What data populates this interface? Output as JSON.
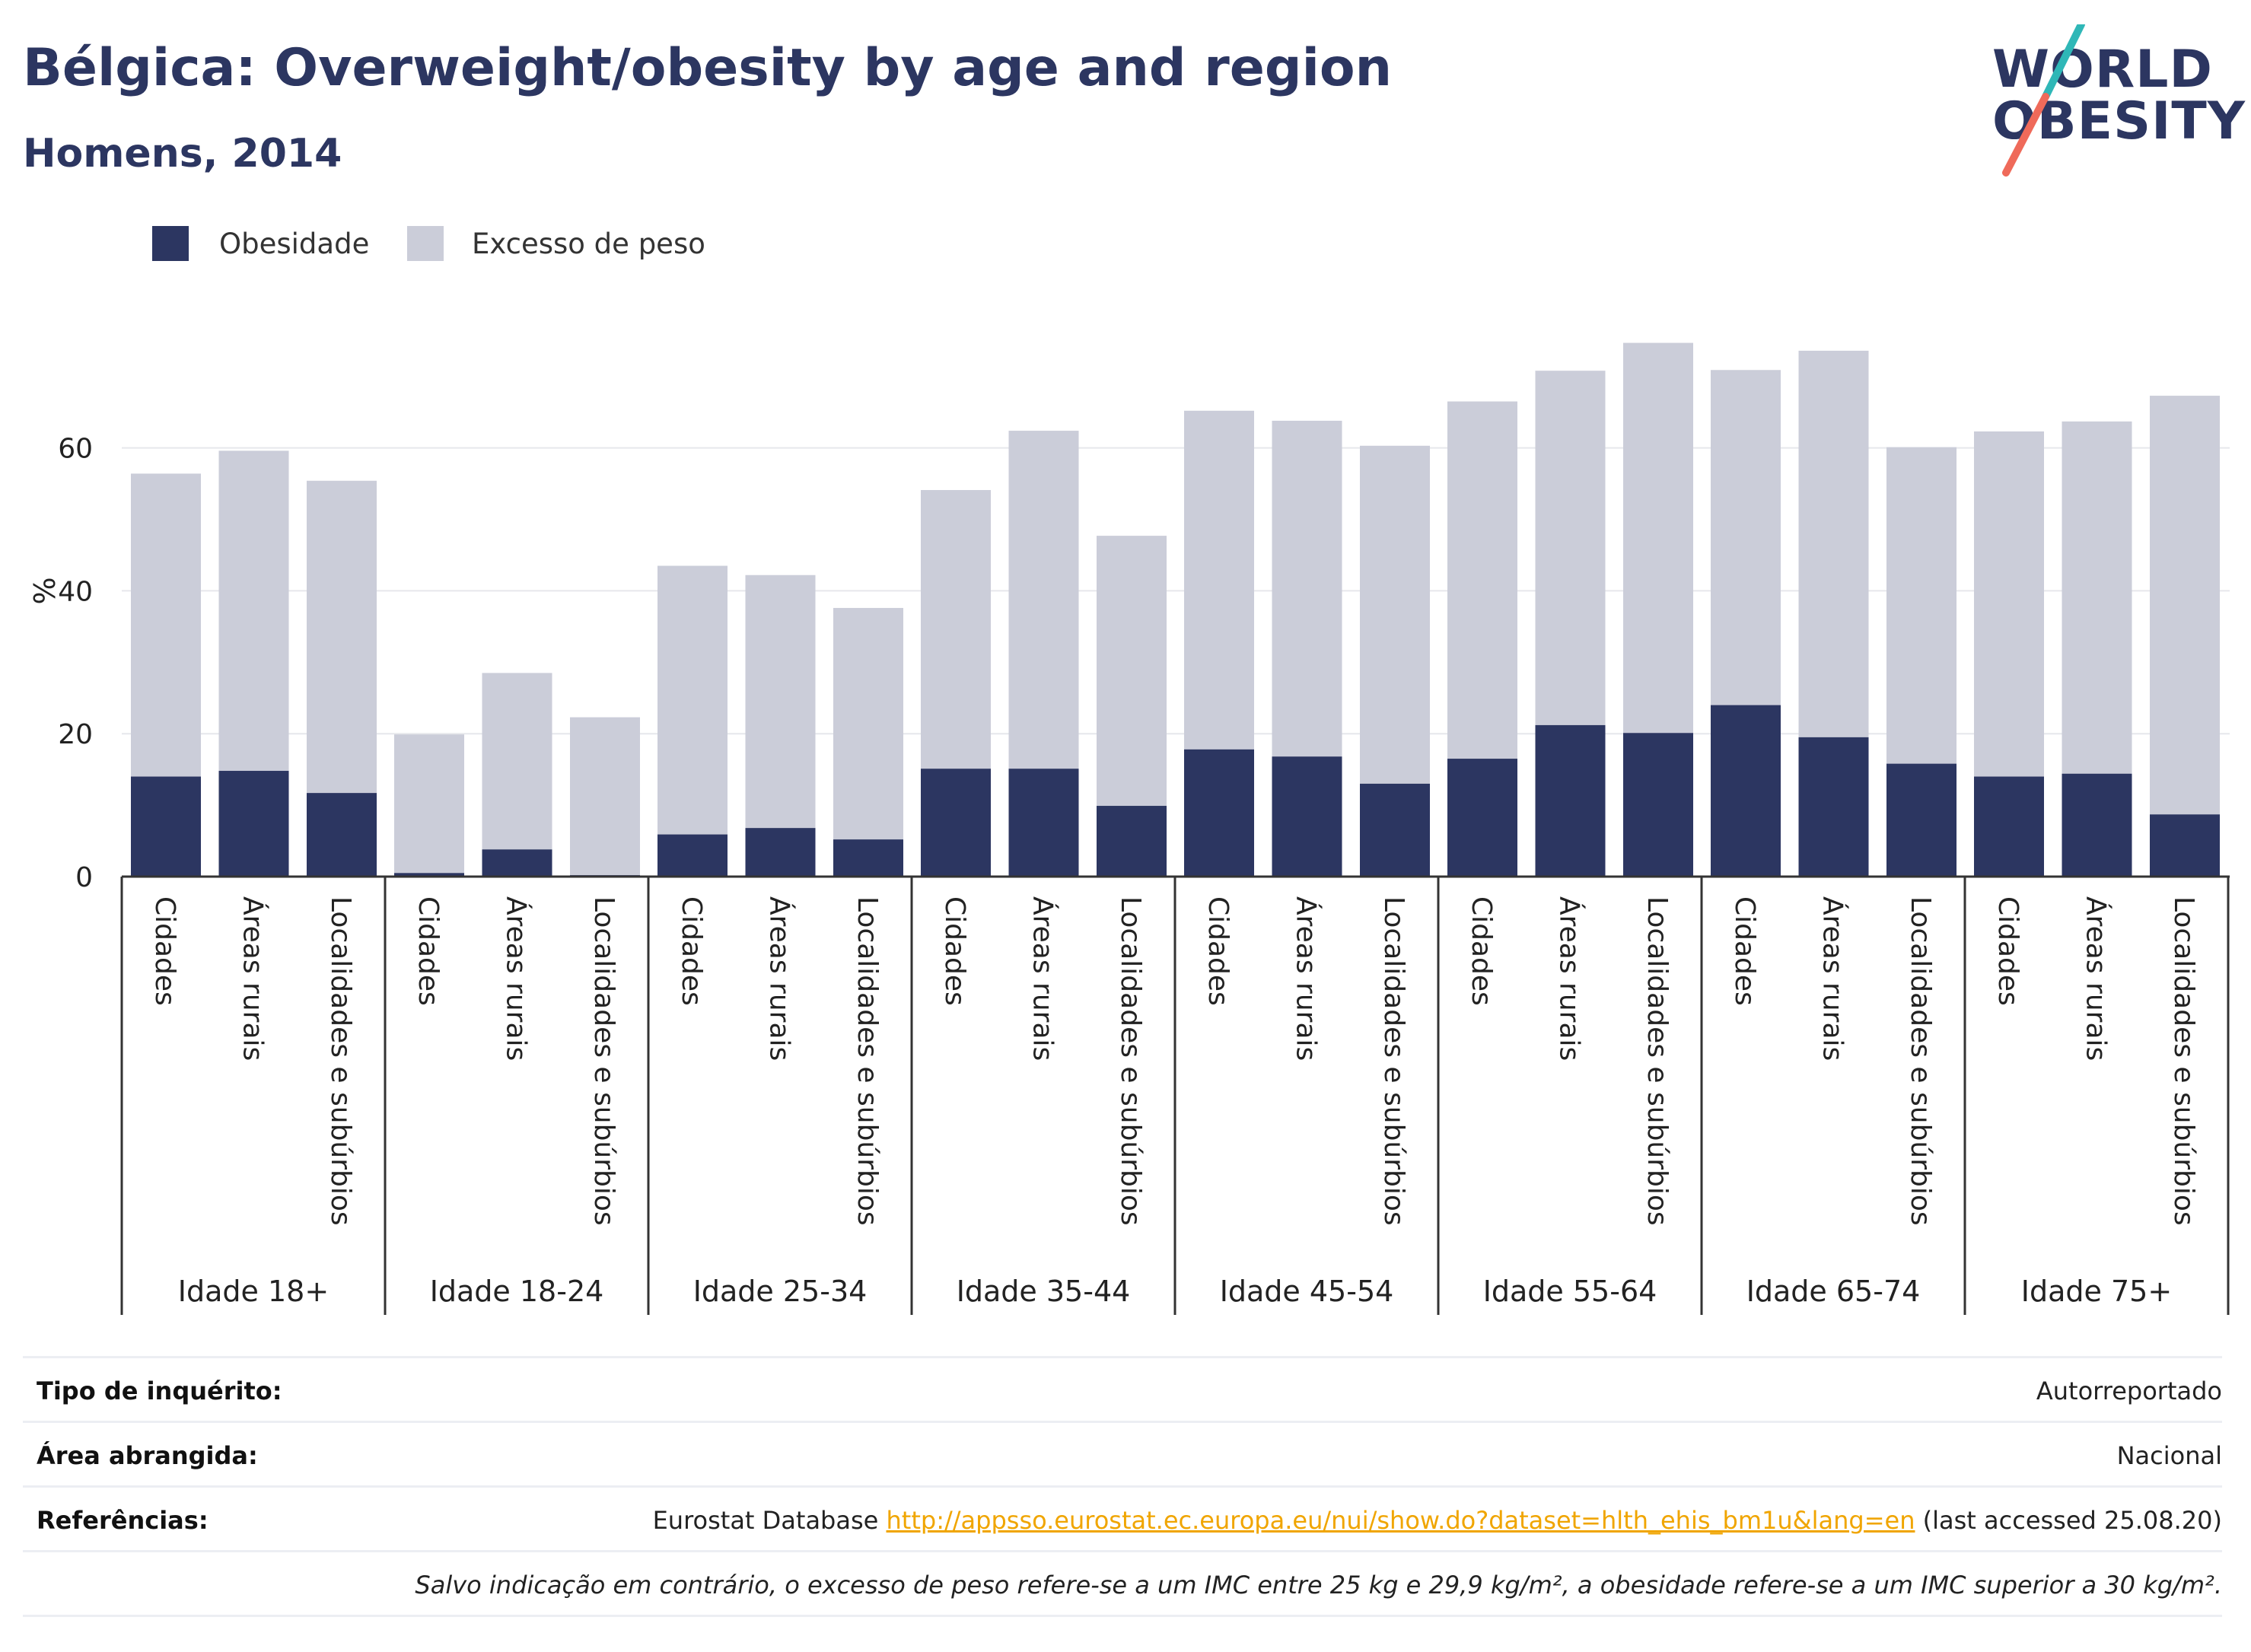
{
  "header": {
    "title": "Bélgica: Overweight/obesity by age and region",
    "subtitle": "Homens, 2014"
  },
  "logo": {
    "line1": "WORLD",
    "line2": "OBESITY"
  },
  "colors": {
    "obesity": "#2c3661",
    "overweight": "#cbcdd9",
    "accent_teal": "#2fb7b7",
    "accent_coral": "#ef6a5a",
    "link": "#f0a500"
  },
  "chart_data": {
    "type": "bar",
    "stacked": false,
    "overlay": true,
    "ylabel": "%",
    "ylim": [
      0,
      80
    ],
    "yticks": [
      0,
      20,
      40,
      60
    ],
    "grid": true,
    "legend_position": "top-left",
    "series": [
      {
        "name": "Obesidade",
        "color": "#2c3661"
      },
      {
        "name": "Excesso de peso",
        "color": "#cbcdd9"
      }
    ],
    "groups": [
      {
        "label": "Idade 18+",
        "categories": [
          "Cidades",
          "Áreas rurais",
          "Localidades e subúrbios"
        ],
        "overweight": [
          56.4,
          59.6,
          55.4
        ],
        "obesity": [
          14.0,
          14.8,
          11.7
        ]
      },
      {
        "label": "Idade 18-24",
        "categories": [
          "Cidades",
          "Áreas rurais",
          "Localidades e subúrbios"
        ],
        "overweight": [
          19.9,
          28.5,
          22.3
        ],
        "obesity": [
          0.5,
          3.8,
          0.2
        ]
      },
      {
        "label": "Idade 25-34",
        "categories": [
          "Cidades",
          "Áreas rurais",
          "Localidades e subúrbios"
        ],
        "overweight": [
          43.5,
          42.2,
          37.6
        ],
        "obesity": [
          5.9,
          6.8,
          5.2
        ]
      },
      {
        "label": "Idade 35-44",
        "categories": [
          "Cidades",
          "Áreas rurais",
          "Localidades e subúrbios"
        ],
        "overweight": [
          54.1,
          62.4,
          47.7
        ],
        "obesity": [
          15.1,
          15.1,
          9.9
        ]
      },
      {
        "label": "Idade 45-54",
        "categories": [
          "Cidades",
          "Áreas rurais",
          "Localidades e subúrbios"
        ],
        "overweight": [
          65.2,
          63.8,
          60.3
        ],
        "obesity": [
          17.8,
          16.8,
          13.0
        ]
      },
      {
        "label": "Idade 55-64",
        "categories": [
          "Cidades",
          "Áreas rurais",
          "Localidades e subúrbios"
        ],
        "overweight": [
          66.5,
          70.8,
          74.7
        ],
        "obesity": [
          16.5,
          21.2,
          20.1
        ]
      },
      {
        "label": "Idade 65-74",
        "categories": [
          "Cidades",
          "Áreas rurais",
          "Localidades e subúrbios"
        ],
        "overweight": [
          70.9,
          73.6,
          60.1
        ],
        "obesity": [
          24.0,
          19.5,
          15.8
        ]
      },
      {
        "label": "Idade 75+",
        "categories": [
          "Cidades",
          "Áreas rurais",
          "Localidades e subúrbios"
        ],
        "overweight": [
          62.3,
          63.7,
          67.3
        ],
        "obesity": [
          14.0,
          14.4,
          8.7
        ]
      }
    ]
  },
  "footer": {
    "rows": [
      {
        "key": "Tipo de inquérito:",
        "value": "Autorreportado"
      },
      {
        "key": "Área abrangida:",
        "value": "Nacional"
      },
      {
        "key": "Referências:",
        "value_prefix": "Eurostat Database ",
        "link": "http://appsso.eurostat.ec.europa.eu/nui/show.do?dataset=hlth_ehis_bm1u&lang=en",
        "value_suffix": " (last accessed 25.08.20)"
      }
    ],
    "note": "Salvo indicação em contrário, o excesso de peso refere-se a um IMC entre 25 kg e 29,9 kg/m², a obesidade refere-se a um IMC superior a 30 kg/m²."
  }
}
